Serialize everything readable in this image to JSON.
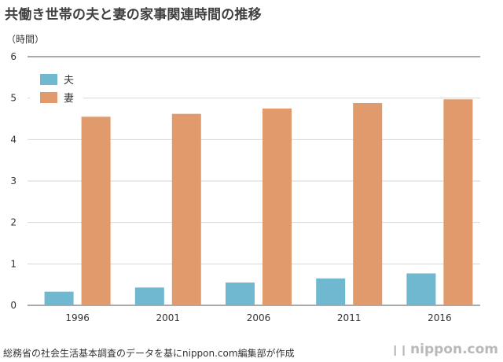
{
  "title": "共働き世帯の夫と妻の家事関連時間の推移",
  "source": "総務省の社会生活基本調査のデータを基にnippon.com編集部が作成",
  "brand": {
    "mark": "❙❙",
    "name": "nippon.com"
  },
  "colors": {
    "husband": "#6fb8cf",
    "wife": "#e09a6c",
    "grid": "#d6d6d6",
    "axis": "#777777"
  },
  "chart_data": {
    "type": "bar",
    "title": "共働き世帯の夫と妻の家事関連時間の推移",
    "ylabel": "（時間）",
    "xlabel": "",
    "ylim": [
      0,
      6
    ],
    "yticks": [
      0,
      1,
      2,
      3,
      4,
      5,
      6
    ],
    "categories": [
      "1996",
      "2001",
      "2006",
      "2011",
      "2016"
    ],
    "series": [
      {
        "name": "夫",
        "values": [
          0.33,
          0.43,
          0.55,
          0.65,
          0.77
        ]
      },
      {
        "name": "妻",
        "values": [
          4.55,
          4.62,
          4.75,
          4.88,
          4.97
        ]
      }
    ],
    "legend": "top-left",
    "grid": true
  }
}
